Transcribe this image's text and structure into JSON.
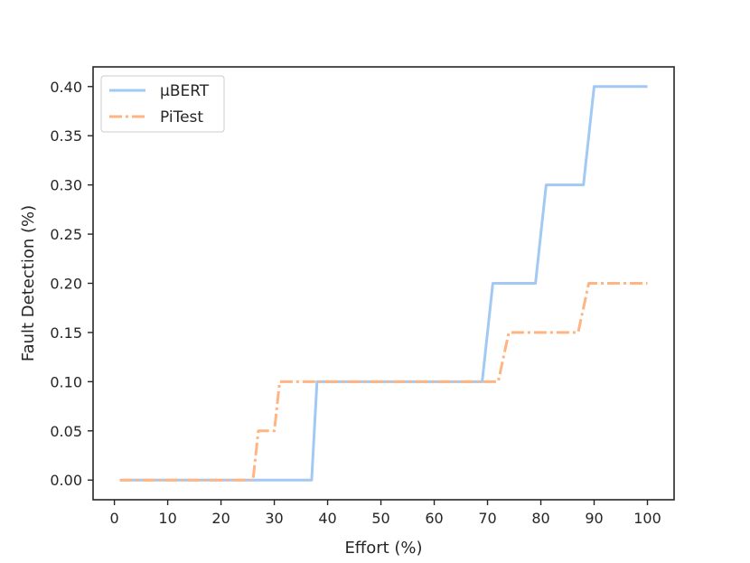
{
  "chart_data": {
    "type": "line",
    "xlabel": "Effort (%)",
    "ylabel": "Fault Detection (%)",
    "xlim": [
      -4,
      105
    ],
    "ylim": [
      -0.02,
      0.42
    ],
    "xticks": [
      0,
      10,
      20,
      30,
      40,
      50,
      60,
      70,
      80,
      90,
      100
    ],
    "yticks": [
      0.0,
      0.05,
      0.1,
      0.15,
      0.2,
      0.25,
      0.3,
      0.35,
      0.4
    ],
    "grid": false,
    "legend_position": "top-left",
    "series": [
      {
        "name": "μBERT",
        "color": "#a1c9f4",
        "style": "solid",
        "x": [
          1,
          37,
          38,
          69,
          71,
          79,
          81,
          88,
          90,
          100
        ],
        "y": [
          0.0,
          0.0,
          0.1,
          0.1,
          0.2,
          0.2,
          0.3,
          0.3,
          0.4,
          0.4
        ]
      },
      {
        "name": "PiTest",
        "color": "#ffb482",
        "style": "dashdot",
        "x": [
          1,
          26,
          27,
          30,
          31,
          72,
          74,
          87,
          89,
          100
        ],
        "y": [
          0.0,
          0.0,
          0.05,
          0.05,
          0.1,
          0.1,
          0.15,
          0.15,
          0.2,
          0.2
        ]
      }
    ]
  }
}
